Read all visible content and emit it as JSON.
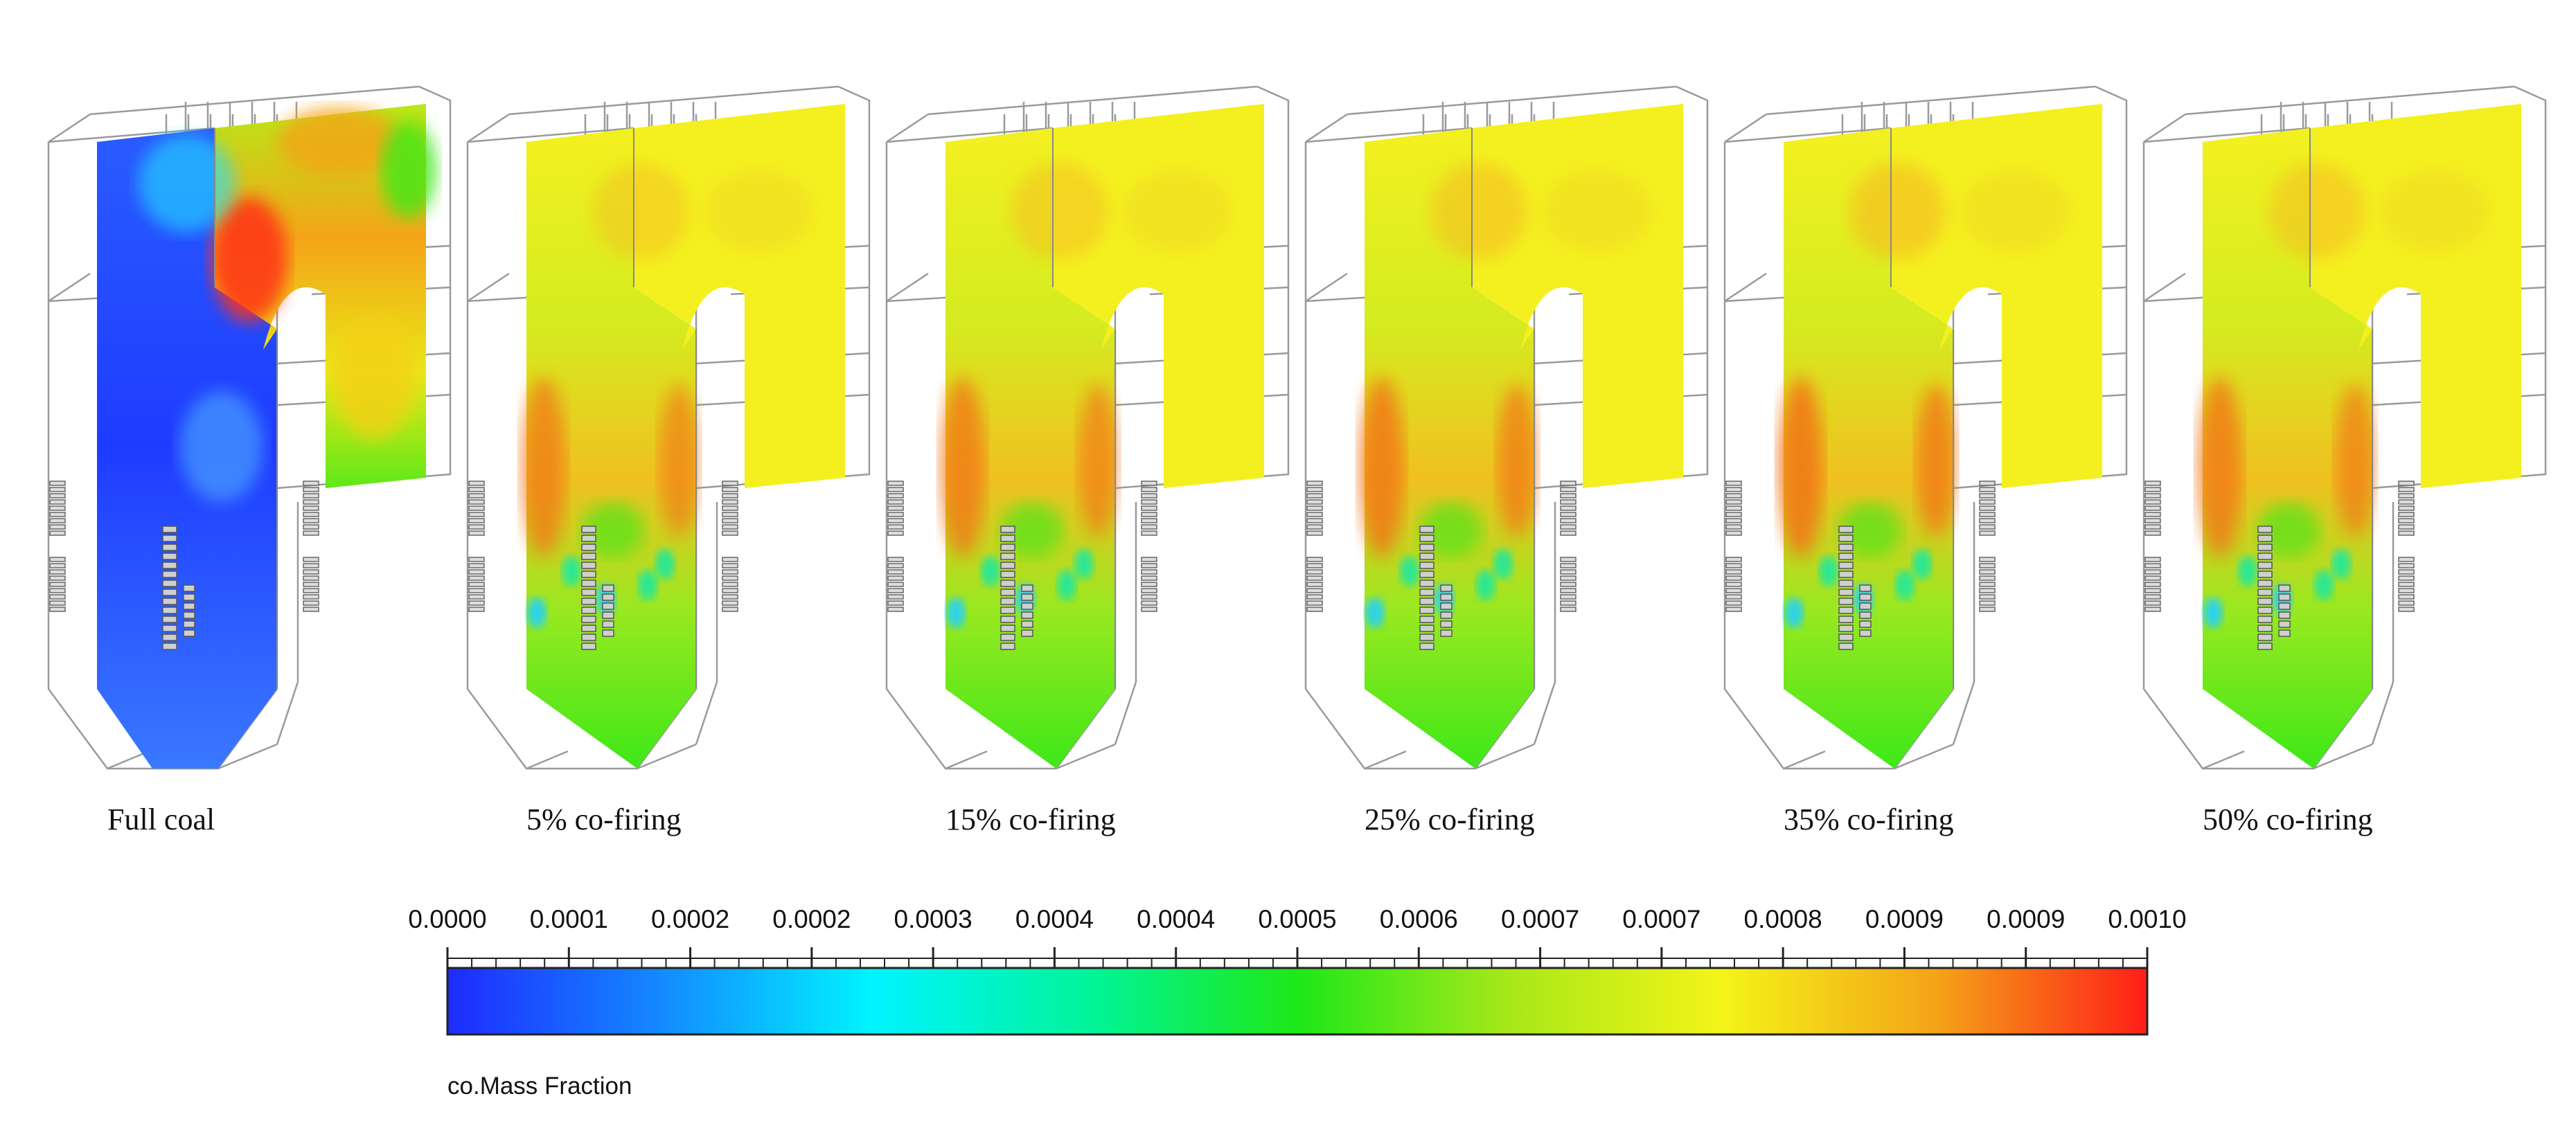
{
  "panels": [
    {
      "label": "Full coal",
      "scheme": "coal"
    },
    {
      "label": "5% co-firing",
      "scheme": "cofire",
      "intensity": 0.55
    },
    {
      "label": "15% co-firing",
      "scheme": "cofire",
      "intensity": 0.65
    },
    {
      "label": "25% co-firing",
      "scheme": "cofire",
      "intensity": 0.8
    },
    {
      "label": "35% co-firing",
      "scheme": "cofire",
      "intensity": 0.95
    },
    {
      "label": "50% co-firing",
      "scheme": "cofire",
      "intensity": 0.7
    }
  ],
  "legend": {
    "title": "co.Mass Fraction",
    "ticks": [
      "0.0000",
      "0.0001",
      "0.0002",
      "0.0002",
      "0.0003",
      "0.0004",
      "0.0004",
      "0.0005",
      "0.0006",
      "0.0007",
      "0.0007",
      "0.0008",
      "0.0009",
      "0.0009",
      "0.0010"
    ],
    "colors": [
      "#1e2bff",
      "#1489ff",
      "#00f4ff",
      "#00f49c",
      "#1ee818",
      "#a8e818",
      "#f4f418",
      "#f4a418",
      "#ff1e18"
    ]
  }
}
